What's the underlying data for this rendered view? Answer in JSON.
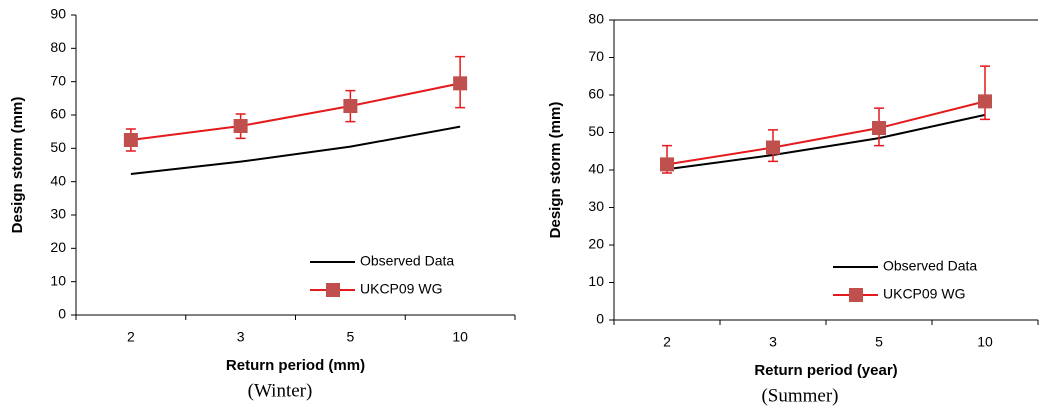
{
  "chart_data": [
    {
      "type": "line",
      "caption": "(Winter)",
      "x_label": "Return period (mm)",
      "y_label": "Design storm (mm)",
      "categories": [
        "2",
        "3",
        "5",
        "10"
      ],
      "ylim": [
        0,
        90
      ],
      "yticks": [
        0,
        10,
        20,
        30,
        40,
        50,
        60,
        70,
        80,
        90
      ],
      "legend": "lower right",
      "series": [
        {
          "name": "Observed Data",
          "color": "#000000",
          "values": [
            42.3,
            46,
            50.5,
            56.5
          ]
        },
        {
          "name": "UKCP09 WG",
          "color": "#e41a1c",
          "marker_color": "#c0504d",
          "values": [
            52.5,
            56.7,
            62.7,
            69.5
          ],
          "error_plus": [
            3.3,
            3.6,
            4.6,
            8
          ],
          "error_minus": [
            3.3,
            3.7,
            4.7,
            7.3
          ]
        }
      ]
    },
    {
      "type": "line",
      "caption": "(Summer)",
      "x_label": "Return period (year)",
      "y_label": "Design storm (mm)",
      "categories": [
        "2",
        "3",
        "5",
        "10"
      ],
      "ylim": [
        0,
        80
      ],
      "yticks": [
        0,
        10,
        20,
        30,
        40,
        50,
        60,
        70,
        80
      ],
      "legend": "lower right",
      "series": [
        {
          "name": "Observed Data",
          "color": "#000000",
          "values": [
            40.2,
            44,
            48.5,
            54.7
          ]
        },
        {
          "name": "UKCP09 WG",
          "color": "#e41a1c",
          "marker_color": "#c0504d",
          "values": [
            41.5,
            46,
            51.2,
            58.3
          ],
          "error_plus": [
            5,
            4.7,
            5.3,
            9.4
          ],
          "error_minus": [
            2.3,
            3.7,
            4.7,
            4.8
          ]
        }
      ]
    }
  ]
}
